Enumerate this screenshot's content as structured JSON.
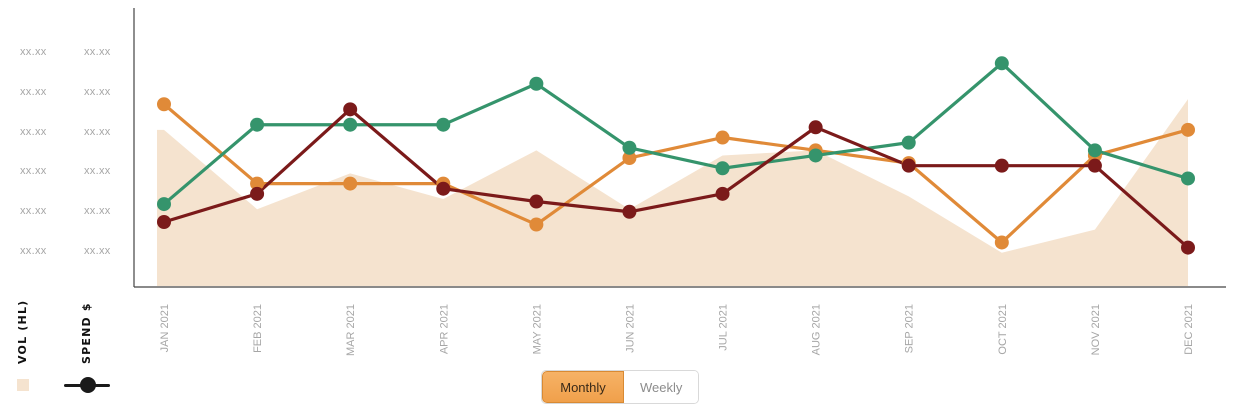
{
  "chart_data": {
    "type": "line",
    "categories": [
      "JAN 2021",
      "FEB 2021",
      "MAR 2021",
      "APR 2021",
      "MAY 2021",
      "JUN 2021",
      "JUL 2021",
      "AUG 2021",
      "SEP 2021",
      "OCT 2021",
      "NOV 2021",
      "DEC 2021"
    ],
    "area_series": {
      "values": [
        0.61,
        0.3,
        0.44,
        0.34,
        0.53,
        0.3,
        0.51,
        0.53,
        0.35,
        0.13,
        0.22,
        0.73
      ],
      "color": "#f5e3cf"
    },
    "series": [
      {
        "values": [
          0.71,
          0.4,
          0.4,
          0.4,
          0.24,
          0.5,
          0.58,
          0.53,
          0.48,
          0.17,
          0.51,
          0.61
        ],
        "color": "#e08a38"
      },
      {
        "values": [
          0.32,
          0.63,
          0.63,
          0.63,
          0.79,
          0.54,
          0.46,
          0.51,
          0.56,
          0.87,
          0.53,
          0.42
        ],
        "color": "#35946c"
      },
      {
        "values": [
          0.25,
          0.36,
          0.69,
          0.38,
          0.33,
          0.29,
          0.36,
          0.62,
          0.47,
          0.47,
          0.47,
          0.15
        ],
        "color": "#7b1a1a"
      }
    ],
    "ylim": [
      0,
      1
    ],
    "y_ticks_left": [
      "xx.xx",
      "xx.xx",
      "xx.xx",
      "xx.xx",
      "xx.xx",
      "xx.xx"
    ],
    "y_ticks_right": [
      "xx.xx",
      "xx.xx",
      "xx.xx",
      "xx.xx",
      "xx.xx",
      "xx.xx"
    ],
    "axis_titles": {
      "vol": "VOL (HL)",
      "spend": "SPEND $"
    },
    "grid": false
  },
  "legend": {
    "vol_color": "#f5e3cf",
    "spend_color": "#1a1a1a"
  },
  "toggle": {
    "monthly_label": "Monthly",
    "weekly_label": "Weekly",
    "selected": "Monthly"
  }
}
